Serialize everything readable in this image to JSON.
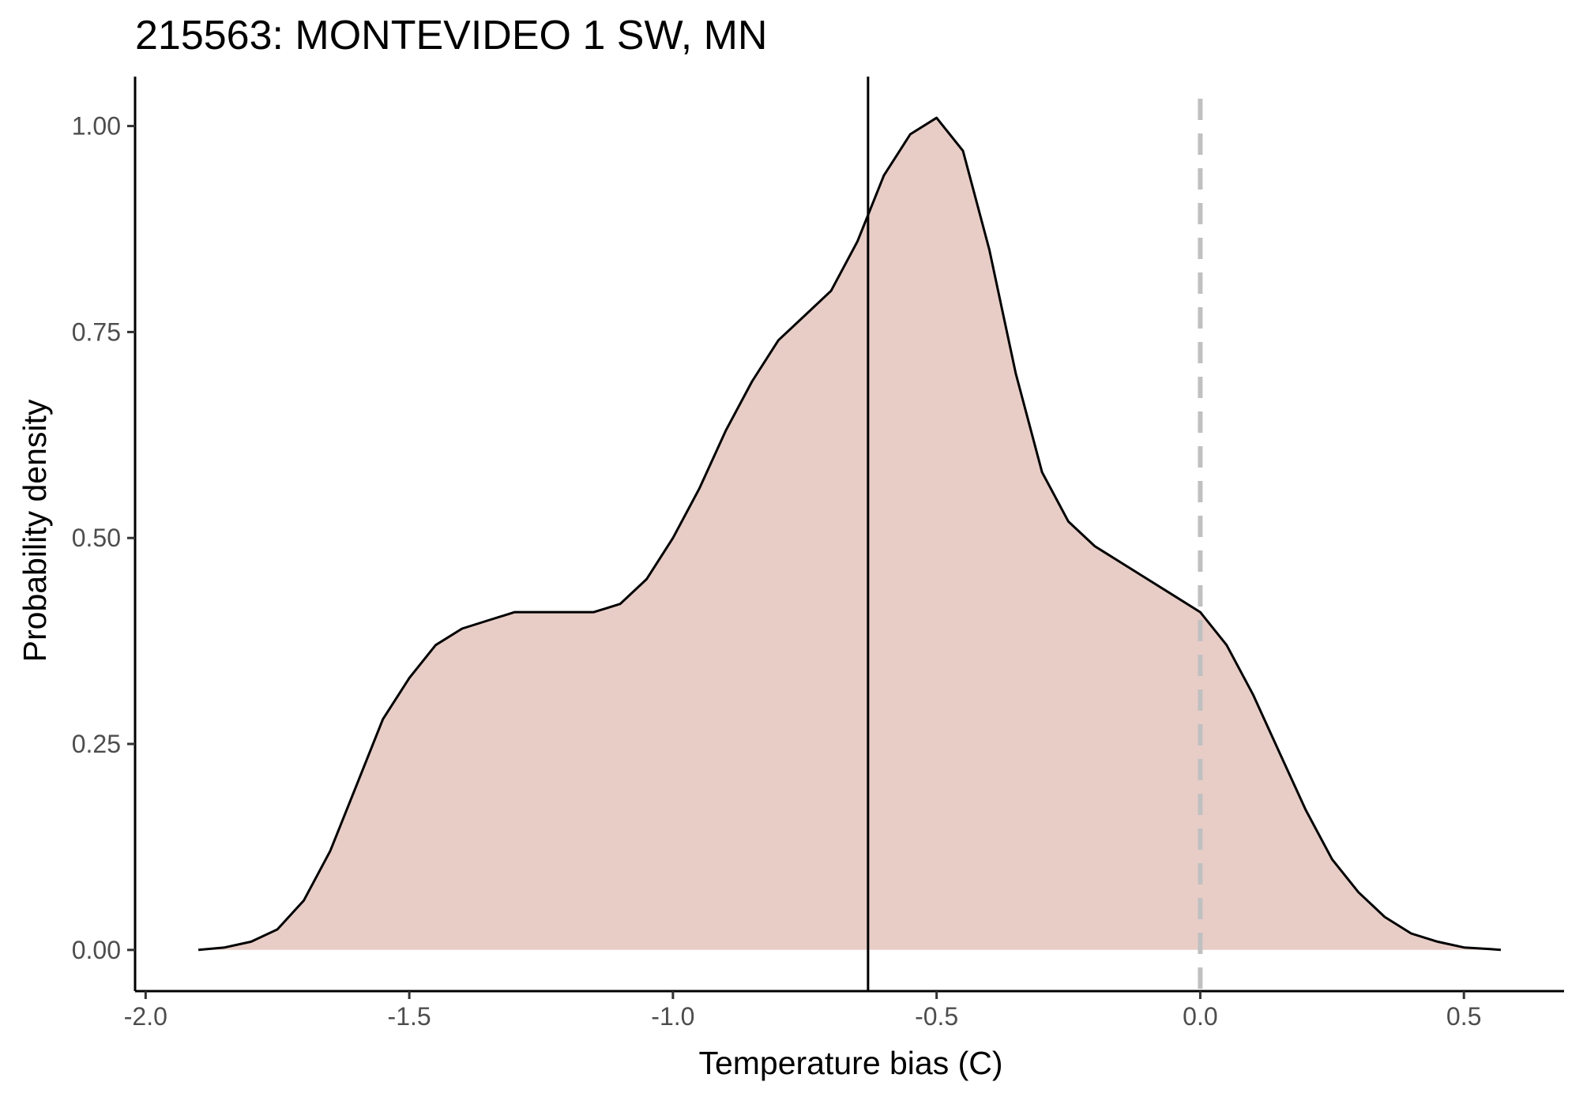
{
  "chart_data": {
    "type": "area",
    "title": "215563: MONTEVIDEO 1 SW, MN",
    "xlabel": "Temperature bias (C)",
    "ylabel": "Probability density",
    "xlim": [
      -2.02,
      0.69
    ],
    "ylim": [
      -0.05,
      1.06
    ],
    "x_ticks": [
      -2.0,
      -1.5,
      -1.0,
      -0.5,
      0.0,
      0.5
    ],
    "x_tick_labels": [
      "-2.0",
      "-1.5",
      "-1.0",
      "-0.5",
      "0.0",
      "0.5"
    ],
    "y_ticks": [
      0.0,
      0.25,
      0.5,
      0.75,
      1.0
    ],
    "y_tick_labels": [
      "0.00",
      "0.25",
      "0.50",
      "0.75",
      "1.00"
    ],
    "grid": false,
    "legend": "none",
    "fill_color": "#e8cdc7",
    "line_color": "#000000",
    "mean_line": {
      "x": -0.63,
      "color": "#000000",
      "style": "solid"
    },
    "zero_line": {
      "x": 0.0,
      "color": "#c0c0c0",
      "style": "dashed"
    },
    "series": [
      {
        "x": [
          -1.9,
          -1.85,
          -1.8,
          -1.75,
          -1.7,
          -1.65,
          -1.6,
          -1.55,
          -1.5,
          -1.45,
          -1.4,
          -1.35,
          -1.3,
          -1.25,
          -1.2,
          -1.15,
          -1.1,
          -1.05,
          -1.0,
          -0.95,
          -0.9,
          -0.85,
          -0.8,
          -0.75,
          -0.7,
          -0.65,
          -0.6,
          -0.55,
          -0.5,
          -0.45,
          -0.4,
          -0.35,
          -0.3,
          -0.25,
          -0.2,
          -0.15,
          -0.1,
          -0.05,
          0.0,
          0.05,
          0.1,
          0.15,
          0.2,
          0.25,
          0.3,
          0.35,
          0.4,
          0.45,
          0.5,
          0.55,
          0.57
        ],
        "y": [
          0.0,
          0.003,
          0.01,
          0.025,
          0.06,
          0.12,
          0.2,
          0.28,
          0.33,
          0.37,
          0.39,
          0.4,
          0.41,
          0.41,
          0.41,
          0.41,
          0.42,
          0.45,
          0.5,
          0.56,
          0.63,
          0.69,
          0.74,
          0.77,
          0.8,
          0.86,
          0.94,
          0.99,
          1.01,
          0.97,
          0.85,
          0.7,
          0.58,
          0.52,
          0.49,
          0.47,
          0.45,
          0.43,
          0.41,
          0.37,
          0.31,
          0.24,
          0.17,
          0.11,
          0.07,
          0.04,
          0.02,
          0.01,
          0.003,
          0.001,
          0.0
        ]
      }
    ]
  }
}
